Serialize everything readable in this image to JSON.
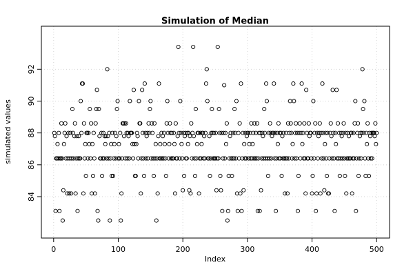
{
  "chart_data": {
    "type": "scatter",
    "title": "Simulation of Median",
    "xlabel": "Index",
    "ylabel": "simulated values",
    "color": "#000000",
    "grid": true,
    "xlim": [
      -19,
      520
    ],
    "ylim": [
      81.4,
      94.7
    ],
    "xticks": [
      0,
      100,
      200,
      300,
      400,
      500
    ],
    "yticks": [
      84,
      86,
      88,
      90,
      92
    ],
    "values": [
      88.0,
      87.8,
      83.1,
      86.4,
      86.4,
      87.3,
      86.4,
      88.0,
      83.1,
      86.4,
      86.4,
      88.6,
      86.4,
      82.5,
      84.4,
      87.3,
      88.0,
      88.6,
      86.4,
      87.8,
      84.2,
      86.4,
      88.0,
      84.2,
      86.4,
      88.0,
      84.2,
      86.4,
      89.5,
      88.0,
      86.4,
      87.8,
      88.6,
      84.2,
      86.4,
      87.8,
      83.1,
      86.4,
      87.8,
      86.4,
      86.4,
      90.0,
      88.0,
      91.1,
      91.1,
      84.2,
      88.6,
      86.4,
      87.3,
      85.3,
      88.0,
      88.0,
      86.4,
      88.0,
      87.3,
      89.5,
      86.4,
      88.6,
      84.2,
      87.3,
      85.3,
      88.0,
      86.4,
      84.2,
      88.6,
      89.5,
      90.7,
      83.1,
      82.5,
      89.5,
      87.8,
      86.4,
      86.4,
      88.0,
      85.3,
      86.4,
      88.0,
      86.4,
      87.8,
      87.3,
      87.8,
      86.4,
      92.0,
      87.8,
      86.4,
      88.0,
      82.5,
      86.4,
      87.3,
      85.3,
      88.0,
      85.3,
      86.4,
      87.3,
      88.0,
      86.4,
      87.8,
      89.5,
      90.0,
      86.4,
      87.3,
      86.4,
      88.0,
      82.5,
      84.2,
      86.4,
      88.6,
      88.6,
      87.8,
      88.6,
      86.4,
      88.6,
      88.0,
      86.4,
      88.0,
      87.8,
      86.4,
      90.0,
      88.0,
      88.0,
      88.0,
      87.3,
      86.4,
      90.7,
      87.3,
      85.3,
      85.3,
      87.3,
      88.0,
      87.8,
      86.4,
      90.0,
      88.6,
      88.6,
      84.2,
      86.4,
      90.7,
      88.0,
      86.4,
      85.3,
      91.1,
      88.0,
      86.4,
      87.8,
      88.0,
      86.4,
      88.6,
      88.0,
      89.5,
      90.0,
      86.4,
      88.6,
      88.0,
      86.4,
      85.3,
      88.6,
      86.4,
      87.3,
      82.5,
      86.4,
      84.2,
      87.8,
      91.1,
      86.4,
      87.3,
      86.4,
      88.0,
      86.4,
      87.8,
      86.4,
      88.0,
      87.3,
      86.4,
      85.3,
      88.6,
      90.0,
      88.0,
      86.4,
      87.3,
      88.6,
      88.0,
      86.4,
      88.0,
      86.4,
      86.4,
      88.0,
      87.3,
      84.2,
      88.6,
      86.4,
      86.4,
      87.8,
      93.4,
      88.0,
      86.4,
      90.0,
      88.0,
      87.3,
      86.4,
      84.4,
      88.0,
      85.3,
      87.8,
      88.0,
      86.4,
      86.4,
      88.0,
      87.3,
      88.0,
      84.4,
      87.8,
      84.2,
      88.6,
      86.4,
      88.0,
      93.4,
      87.8,
      86.4,
      85.3,
      89.5,
      86.4,
      87.3,
      88.0,
      88.0,
      84.2,
      86.4,
      88.0,
      86.4,
      87.3,
      88.0,
      88.0,
      86.4,
      87.8,
      86.4,
      88.0,
      91.1,
      92.0,
      90.0,
      86.4,
      86.4,
      87.8,
      85.3,
      86.4,
      88.0,
      89.5,
      88.0,
      86.4,
      88.0,
      86.4,
      86.4,
      88.0,
      84.4,
      86.4,
      93.4,
      86.4,
      89.5,
      88.0,
      85.3,
      84.4,
      88.0,
      83.1,
      86.4,
      88.0,
      91.0,
      86.4,
      88.0,
      87.3,
      88.6,
      82.5,
      83.1,
      85.3,
      86.4,
      87.8,
      88.0,
      86.4,
      85.3,
      86.4,
      88.0,
      86.4,
      89.5,
      88.0,
      86.4,
      90.0,
      84.2,
      83.1,
      88.0,
      86.4,
      88.6,
      84.2,
      91.1,
      83.1,
      86.4,
      88.0,
      84.4,
      87.3,
      86.4,
      88.0,
      86.4,
      87.8,
      88.0,
      88.0,
      86.4,
      87.3,
      88.0,
      86.4,
      88.6,
      86.4,
      87.3,
      88.0,
      86.4,
      88.6,
      86.4,
      88.0,
      86.4,
      88.6,
      83.1,
      86.4,
      88.0,
      83.1,
      88.0,
      84.4,
      86.4,
      88.0,
      87.8,
      86.4,
      89.5,
      88.0,
      86.4,
      91.1,
      90.0,
      86.4,
      85.3,
      88.0,
      86.4,
      88.6,
      88.0,
      86.4,
      87.8,
      88.0,
      88.0,
      91.1,
      86.4,
      88.0,
      83.1,
      86.4,
      88.0,
      87.3,
      88.6,
      86.4,
      88.0,
      86.4,
      88.0,
      85.3,
      87.8,
      86.4,
      88.0,
      86.4,
      84.2,
      86.4,
      88.0,
      86.4,
      84.2,
      88.6,
      86.4,
      88.0,
      90.0,
      88.6,
      88.0,
      86.4,
      87.3,
      91.1,
      90.0,
      86.4,
      88.0,
      88.6,
      86.4,
      88.0,
      83.1,
      85.3,
      88.0,
      88.6,
      86.4,
      88.0,
      91.1,
      87.3,
      88.0,
      86.4,
      88.6,
      86.4,
      84.2,
      90.7,
      88.0,
      86.4,
      86.4,
      88.6,
      87.8,
      88.0,
      88.0,
      86.4,
      84.2,
      85.3,
      90.0,
      86.4,
      88.0,
      88.6,
      83.1,
      84.2,
      88.0,
      86.4,
      87.8,
      88.0,
      88.6,
      84.2,
      88.0,
      86.4,
      91.1,
      88.0,
      86.4,
      84.4,
      87.3,
      88.0,
      86.4,
      85.3,
      88.0,
      84.2,
      84.2,
      86.4,
      88.0,
      88.6,
      87.8,
      86.4,
      90.7,
      88.0,
      86.4,
      83.1,
      88.0,
      87.3,
      90.7,
      86.4,
      88.6,
      86.4,
      88.0,
      85.3,
      86.4,
      88.0,
      87.8,
      86.4,
      88.0,
      88.6,
      86.4,
      85.3,
      88.0,
      84.2,
      86.4,
      88.0,
      86.4,
      87.8,
      86.4,
      86.4,
      88.0,
      88.0,
      84.2,
      86.4,
      88.0,
      86.4,
      88.6,
      90.0,
      83.1,
      86.4,
      88.0,
      88.6,
      85.3,
      86.4,
      87.8,
      88.0,
      86.4,
      88.0,
      92.0,
      89.5,
      88.0,
      90.0,
      86.4,
      85.3,
      88.0,
      87.3,
      88.6,
      86.4,
      85.3,
      88.0,
      87.8,
      86.4,
      88.0,
      86.4,
      88.0,
      88.0,
      88.0,
      87.8,
      88.6,
      87.3,
      88.0
    ]
  }
}
